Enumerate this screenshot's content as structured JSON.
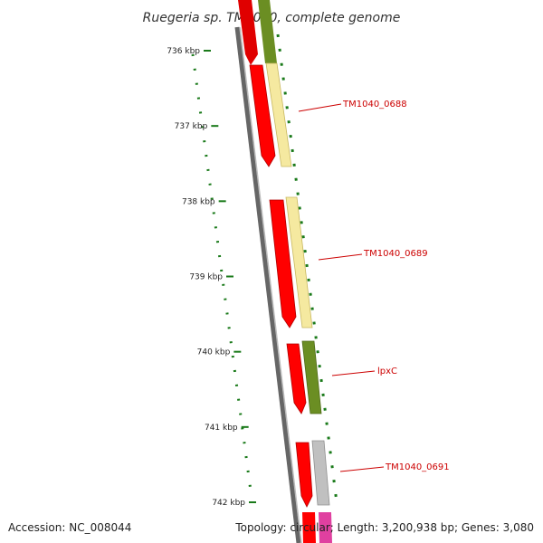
{
  "title": "Ruegeria sp. TM1040, complete genome",
  "footer": {
    "accession": "Accession: NC_008044",
    "summary": "Topology: circular; Length: 3,200,938 bp; Genes: 3,080"
  },
  "ruler": {
    "unit": "kbp",
    "ticks": [
      {
        "kbp": 736,
        "label": "736 kbp"
      },
      {
        "kbp": 737,
        "label": "737 kbp"
      },
      {
        "kbp": 738,
        "label": "738 kbp"
      },
      {
        "kbp": 739,
        "label": "739 kbp"
      },
      {
        "kbp": 740,
        "label": "740 kbp"
      },
      {
        "kbp": 741,
        "label": "741 kbp"
      },
      {
        "kbp": 742,
        "label": "742 kbp"
      }
    ]
  },
  "colors": {
    "cds": "#ff0000",
    "trna_like": "#6b8e23",
    "pale": "#f5e9a0",
    "gray": "#b8b8b8",
    "magenta": "#e040a0",
    "backbone": "#888888",
    "ruler_tick": "#1a7a1a",
    "label": "#cc0000"
  },
  "labels": [
    {
      "text": "TM1040_0688",
      "at_kbp": 737.1
    },
    {
      "text": "TM1040_0689",
      "at_kbp": 738.7
    },
    {
      "text": "lpxC",
      "at_kbp": 740.2
    },
    {
      "text": "TM1040_0691",
      "at_kbp": 741.5
    }
  ]
}
